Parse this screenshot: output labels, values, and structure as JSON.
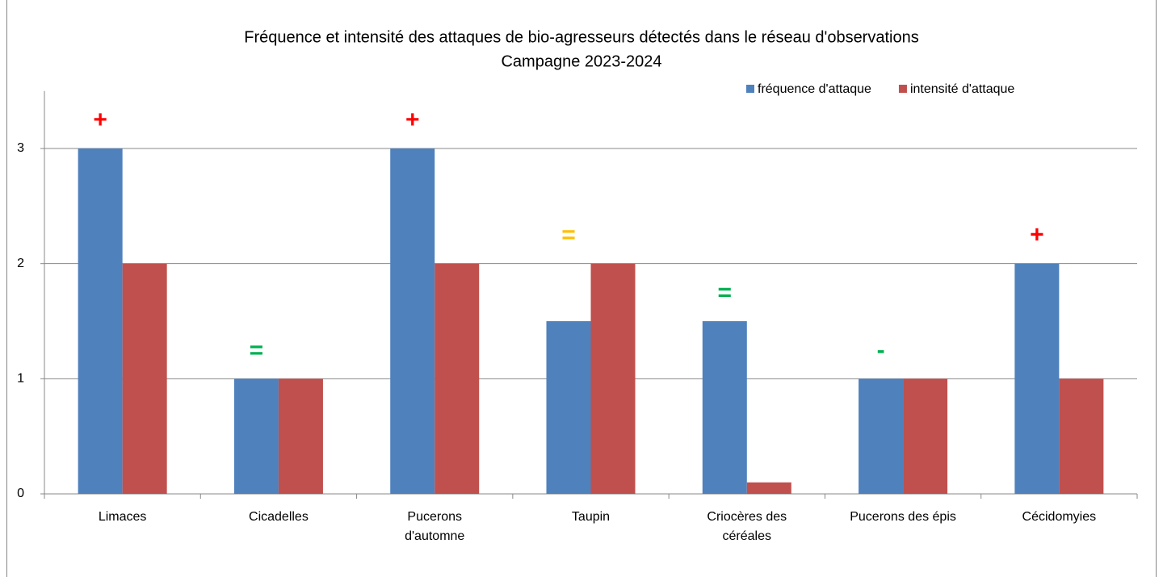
{
  "chart_data": {
    "type": "bar",
    "title": "Fréquence et intensité des attaques de bio-agresseurs détectés dans le réseau d'observations",
    "subtitle": "Campagne 2023-2024",
    "categories": [
      "Limaces",
      "Cicadelles",
      "Pucerons d'automne",
      "Taupin",
      "Criocères des céréales",
      "Pucerons des épis",
      "Cécidomyies"
    ],
    "series": [
      {
        "name": "fréquence d'attaque",
        "color": "#4f81bd",
        "values": [
          3,
          1,
          3,
          1.5,
          1.5,
          1,
          2
        ]
      },
      {
        "name": "intensité d'attaque",
        "color": "#c0504d",
        "values": [
          2,
          1,
          2,
          2,
          0.1,
          1,
          1
        ]
      }
    ],
    "annotations": [
      {
        "text": "+",
        "color": "#ff0000"
      },
      {
        "text": "=",
        "color": "#00b050"
      },
      {
        "text": "+",
        "color": "#ff0000"
      },
      {
        "text": "=",
        "color": "#ffc000"
      },
      {
        "text": "=",
        "color": "#00b050"
      },
      {
        "text": "-",
        "color": "#00b050"
      },
      {
        "text": "+",
        "color": "#ff0000"
      }
    ],
    "ylim": [
      0,
      3.5
    ],
    "yticks": [
      0,
      1,
      2,
      3
    ],
    "grid": true,
    "legend": "top-right"
  }
}
